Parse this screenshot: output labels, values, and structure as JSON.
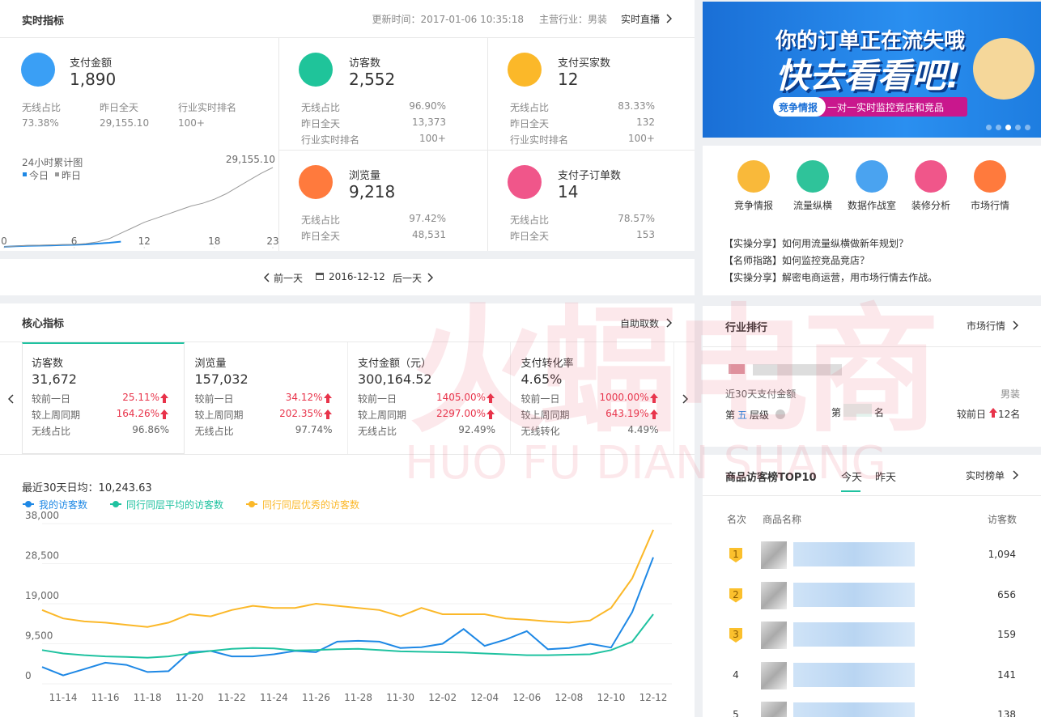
{
  "realtime": {
    "title": "实时指标",
    "update_time": "更新时间：2017-01-06 10:35:18",
    "industry": "主营行业：男装",
    "live": "实时直播",
    "main_metric": {
      "label": "支付金额",
      "value": "1,890",
      "stats": [
        {
          "label": "无线占比",
          "value": "73.38%"
        },
        {
          "label": "昨日全天",
          "value": "29,155.10"
        },
        {
          "label": "行业实时排名",
          "value": "100+"
        }
      ]
    },
    "metrics": [
      {
        "label": "访客数",
        "value": "2,552",
        "stats": [
          {
            "label": "无线占比",
            "value": "96.90%"
          },
          {
            "label": "昨日全天",
            "value": "13,373"
          },
          {
            "label": "行业实时排名",
            "value": "100+"
          }
        ]
      },
      {
        "label": "支付买家数",
        "value": "12",
        "stats": [
          {
            "label": "无线占比",
            "value": "83.33%"
          },
          {
            "label": "昨日全天",
            "value": "132"
          },
          {
            "label": "行业实时排名",
            "value": "100+"
          }
        ]
      },
      {
        "label": "浏览量",
        "value": "9,218",
        "stats": [
          {
            "label": "无线占比",
            "value": "97.42%"
          },
          {
            "label": "昨日全天",
            "value": "48,531"
          }
        ]
      },
      {
        "label": "支付子订单数",
        "value": "14",
        "stats": [
          {
            "label": "无线占比",
            "value": "78.57%"
          },
          {
            "label": "昨日全天",
            "value": "153"
          }
        ]
      }
    ]
  },
  "date_nav": {
    "prev": "前一天",
    "date": "2016-12-12",
    "next": "后一天"
  },
  "core": {
    "title": "核心指标",
    "action": "自助取数",
    "cards": [
      {
        "label": "访客数",
        "value": "31,672",
        "rows": [
          {
            "label": "较前一日",
            "value": "25.11%"
          },
          {
            "label": "较上周同期",
            "value": "164.26%"
          },
          {
            "label": "无线占比",
            "value": "96.86%"
          }
        ]
      },
      {
        "label": "浏览量",
        "value": "157,032",
        "rows": [
          {
            "label": "较前一日",
            "value": "34.12%"
          },
          {
            "label": "较上周同期",
            "value": "202.35%"
          },
          {
            "label": "无线占比",
            "value": "97.74%"
          }
        ]
      },
      {
        "label": "支付金额（元）",
        "value": "300,164.52",
        "rows": [
          {
            "label": "较前一日",
            "value": "1405.00%"
          },
          {
            "label": "较上周同期",
            "value": "2297.00%"
          },
          {
            "label": "无线占比",
            "value": "92.49%"
          }
        ]
      },
      {
        "label": "支付转化率",
        "value": "4.65%",
        "rows": [
          {
            "label": "较前一日",
            "value": "1000.00%"
          },
          {
            "label": "较上周同期",
            "value": "643.19%"
          },
          {
            "label": "无线转化",
            "value": "4.49%"
          }
        ]
      }
    ]
  },
  "chart_data": [
    {
      "type": "line",
      "title": "24小时累计图",
      "x": [
        0,
        1,
        2,
        3,
        4,
        5,
        6,
        7,
        8,
        9,
        10,
        11,
        12,
        13,
        14,
        15,
        16,
        17,
        18,
        19,
        20,
        21,
        22,
        23
      ],
      "xlim": [
        0,
        23
      ],
      "xticks": [
        0,
        6,
        12,
        18,
        23
      ],
      "ylim": [
        0,
        29155.1
      ],
      "yticks": [
        {
          "value": 29155.1,
          "label": "29,155.10"
        }
      ],
      "series": [
        {
          "name": "今日",
          "color": "#1e88e5",
          "values": [
            0,
            200,
            350,
            450,
            550,
            650,
            750,
            900,
            1200,
            1500,
            1890,
            null,
            null,
            null,
            null,
            null,
            null,
            null,
            null,
            null,
            null,
            null,
            null,
            null
          ]
        },
        {
          "name": "昨日",
          "color": "#999999",
          "values": [
            0,
            300,
            500,
            600,
            700,
            800,
            900,
            1200,
            1800,
            3000,
            5000,
            7000,
            9000,
            10500,
            12000,
            13500,
            15000,
            16000,
            17500,
            19500,
            22000,
            24500,
            27000,
            29155.1
          ]
        }
      ]
    },
    {
      "type": "line",
      "subtitle": "最近30天日均：10,243.63",
      "categories": [
        null,
        "11-14",
        null,
        "11-16",
        null,
        "11-18",
        null,
        "11-20",
        null,
        "11-22",
        null,
        "11-24",
        null,
        "11-26",
        null,
        "11-28",
        null,
        "11-30",
        null,
        "12-02",
        null,
        "12-04",
        null,
        "12-06",
        null,
        "12-08",
        null,
        "12-10",
        null,
        "12-12"
      ],
      "ylim": [
        0,
        38000
      ],
      "yticks": [
        0,
        {
          "value": 9500,
          "label": "9,500"
        },
        {
          "value": 19000,
          "label": "19,000"
        },
        {
          "value": 28500,
          "label": "28,500"
        },
        {
          "value": 38000,
          "label": "38,000"
        }
      ],
      "series": [
        {
          "name": "我的访客数",
          "color": "#1e88e5",
          "values": [
            4000,
            2000,
            3500,
            5000,
            4500,
            2800,
            3000,
            7500,
            7800,
            6500,
            6500,
            7000,
            7800,
            7500,
            10000,
            10200,
            10000,
            8500,
            8700,
            9500,
            13000,
            9000,
            10500,
            12500,
            8200,
            8500,
            9500,
            8600,
            17000,
            30000
          ]
        },
        {
          "name": "同行同层平均的访客数",
          "color": "#1fc2a0",
          "values": [
            8000,
            7200,
            6800,
            6500,
            6400,
            6200,
            6500,
            7200,
            7800,
            8300,
            8500,
            8400,
            7900,
            8000,
            8200,
            8300,
            8000,
            7700,
            7600,
            7500,
            7400,
            7200,
            7000,
            6800,
            6800,
            6900,
            7000,
            8000,
            10000,
            16500
          ]
        },
        {
          "name": "同行同层优秀的访客数",
          "color": "#fbb829",
          "values": [
            17500,
            15500,
            14800,
            14500,
            14000,
            13500,
            14500,
            16500,
            16000,
            17500,
            18500,
            18000,
            18000,
            19000,
            18500,
            18000,
            17500,
            16000,
            18000,
            16500,
            16500,
            16500,
            15500,
            15200,
            14800,
            14500,
            15000,
            18000,
            25000,
            36500
          ]
        }
      ]
    }
  ],
  "watermark": {
    "cn": "火蝠电商",
    "en": "HUO FU DIAN SHANG"
  },
  "banner": {
    "line1": "你的订单正在流失哦",
    "line2": "快去看看吧!",
    "tag": "竞争情报",
    "desc": "一对一实时监控竞店和竞品"
  },
  "tools": [
    "竞争情报",
    "流量纵横",
    "数据作战室",
    "装修分析",
    "市场行情"
  ],
  "news": [
    {
      "tag": "【实操分享】",
      "text": "如何用流量纵横做新年规划？"
    },
    {
      "tag": "【名师指路】",
      "text": "如何监控竞品竞店？"
    },
    {
      "tag": "【实操分享】",
      "text": "解密电商运营，用市场行情去作战。"
    }
  ],
  "ranking": {
    "title": "行业排行",
    "action": "市场行情",
    "metric": "近30天支付金额",
    "industry": "男装",
    "tier_prefix": "第",
    "tier": "五",
    "tier_suffix": "层级",
    "rank_prefix": "第",
    "rank_suffix": "名",
    "change_label": "较前日",
    "change": "12名"
  },
  "top10": {
    "title": "商品访客榜TOP10",
    "tabs": [
      "今天",
      "昨天"
    ],
    "action": "实时榜单",
    "headers": [
      "名次",
      "商品名称",
      "访客数"
    ],
    "rows": [
      {
        "rank": "1",
        "visitors": "1,094"
      },
      {
        "rank": "2",
        "visitors": "656"
      },
      {
        "rank": "3",
        "visitors": "159"
      },
      {
        "rank": "4",
        "visitors": "141"
      },
      {
        "rank": "5",
        "visitors": "138"
      }
    ]
  }
}
